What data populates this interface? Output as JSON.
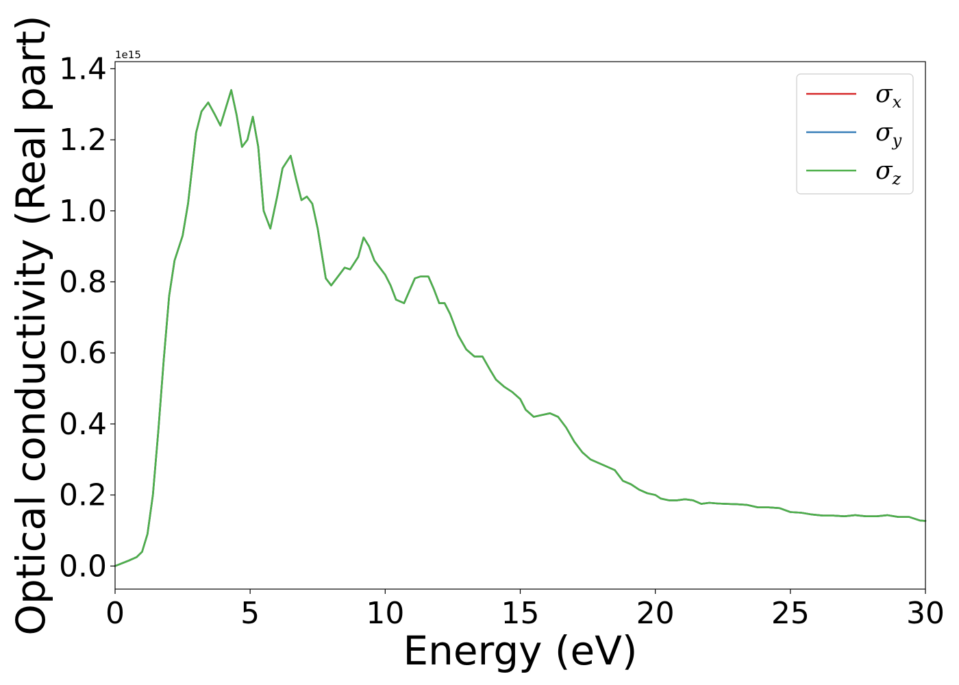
{
  "chart_data": {
    "type": "line",
    "title": "",
    "xlabel": "Energy (eV)",
    "ylabel": "Optical conductivity (Real part)",
    "y_offset_label": "1e15",
    "xlim": [
      0,
      30
    ],
    "ylim": [
      -0.065,
      1.42
    ],
    "xticks": [
      0,
      5,
      10,
      15,
      20,
      25,
      30
    ],
    "xtick_labels": [
      "0",
      "5",
      "10",
      "15",
      "20",
      "25",
      "30"
    ],
    "yticks": [
      0.0,
      0.2,
      0.4,
      0.6,
      0.8,
      1.0,
      1.2,
      1.4
    ],
    "ytick_labels": [
      "0.0",
      "0.2",
      "0.4",
      "0.6",
      "0.8",
      "1.0",
      "1.2",
      "1.4"
    ],
    "grid": false,
    "legend_position": "top-right",
    "series": [
      {
        "name": "σx",
        "legend_symbol": "σ",
        "legend_subscript": "x",
        "color": "#d62728",
        "x": [
          0,
          0.5,
          0.8,
          1.0,
          1.2,
          1.4,
          1.6,
          1.8,
          2.0,
          2.2,
          2.5,
          2.7,
          3.0,
          3.2,
          3.45,
          3.7,
          3.9,
          4.1,
          4.3,
          4.5,
          4.7,
          4.9,
          5.1,
          5.3,
          5.5,
          5.75,
          6.0,
          6.2,
          6.5,
          6.7,
          6.9,
          7.1,
          7.3,
          7.5,
          7.8,
          8.0,
          8.2,
          8.5,
          8.7,
          9.0,
          9.2,
          9.4,
          9.6,
          9.8,
          10.0,
          10.2,
          10.4,
          10.7,
          10.9,
          11.1,
          11.3,
          11.6,
          11.8,
          12.0,
          12.2,
          12.4,
          12.7,
          13.0,
          13.3,
          13.6,
          13.9,
          14.1,
          14.4,
          14.7,
          15.0,
          15.2,
          15.5,
          15.8,
          16.1,
          16.4,
          16.7,
          17.0,
          17.3,
          17.6,
          17.9,
          18.2,
          18.5,
          18.8,
          19.1,
          19.4,
          19.7,
          20.0,
          20.2,
          20.5,
          20.8,
          21.1,
          21.4,
          21.7,
          22.0,
          22.3,
          22.6,
          23.0,
          23.4,
          23.8,
          24.2,
          24.6,
          25.0,
          25.4,
          25.8,
          26.2,
          26.6,
          27.0,
          27.4,
          27.8,
          28.2,
          28.6,
          29.0,
          29.4,
          29.8,
          30.0
        ],
        "y": [
          0.0,
          0.015,
          0.025,
          0.04,
          0.09,
          0.2,
          0.38,
          0.58,
          0.76,
          0.86,
          0.93,
          1.02,
          1.22,
          1.28,
          1.305,
          1.27,
          1.24,
          1.29,
          1.34,
          1.27,
          1.18,
          1.2,
          1.265,
          1.18,
          1.0,
          0.95,
          1.04,
          1.12,
          1.155,
          1.09,
          1.03,
          1.04,
          1.02,
          0.95,
          0.81,
          0.79,
          0.81,
          0.84,
          0.835,
          0.87,
          0.925,
          0.9,
          0.86,
          0.84,
          0.82,
          0.79,
          0.75,
          0.74,
          0.775,
          0.81,
          0.815,
          0.815,
          0.78,
          0.74,
          0.74,
          0.71,
          0.65,
          0.61,
          0.59,
          0.59,
          0.55,
          0.525,
          0.505,
          0.49,
          0.47,
          0.44,
          0.42,
          0.425,
          0.43,
          0.42,
          0.39,
          0.35,
          0.32,
          0.3,
          0.29,
          0.28,
          0.27,
          0.24,
          0.23,
          0.215,
          0.205,
          0.2,
          0.19,
          0.185,
          0.185,
          0.188,
          0.185,
          0.175,
          0.178,
          0.176,
          0.175,
          0.174,
          0.172,
          0.165,
          0.165,
          0.163,
          0.152,
          0.15,
          0.145,
          0.142,
          0.142,
          0.14,
          0.143,
          0.14,
          0.14,
          0.143,
          0.138,
          0.138,
          0.128,
          0.127
        ]
      },
      {
        "name": "σy",
        "legend_symbol": "σ",
        "legend_subscript": "y",
        "color": "#377eb8",
        "x": [
          0,
          0.5,
          0.8,
          1.0,
          1.2,
          1.4,
          1.6,
          1.8,
          2.0,
          2.2,
          2.5,
          2.7,
          3.0,
          3.2,
          3.45,
          3.7,
          3.9,
          4.1,
          4.3,
          4.5,
          4.7,
          4.9,
          5.1,
          5.3,
          5.5,
          5.75,
          6.0,
          6.2,
          6.5,
          6.7,
          6.9,
          7.1,
          7.3,
          7.5,
          7.8,
          8.0,
          8.2,
          8.5,
          8.7,
          9.0,
          9.2,
          9.4,
          9.6,
          9.8,
          10.0,
          10.2,
          10.4,
          10.7,
          10.9,
          11.1,
          11.3,
          11.6,
          11.8,
          12.0,
          12.2,
          12.4,
          12.7,
          13.0,
          13.3,
          13.6,
          13.9,
          14.1,
          14.4,
          14.7,
          15.0,
          15.2,
          15.5,
          15.8,
          16.1,
          16.4,
          16.7,
          17.0,
          17.3,
          17.6,
          17.9,
          18.2,
          18.5,
          18.8,
          19.1,
          19.4,
          19.7,
          20.0,
          20.2,
          20.5,
          20.8,
          21.1,
          21.4,
          21.7,
          22.0,
          22.3,
          22.6,
          23.0,
          23.4,
          23.8,
          24.2,
          24.6,
          25.0,
          25.4,
          25.8,
          26.2,
          26.6,
          27.0,
          27.4,
          27.8,
          28.2,
          28.6,
          29.0,
          29.4,
          29.8,
          30.0
        ],
        "y": [
          0.0,
          0.015,
          0.025,
          0.04,
          0.09,
          0.2,
          0.38,
          0.58,
          0.76,
          0.86,
          0.93,
          1.02,
          1.22,
          1.28,
          1.305,
          1.27,
          1.24,
          1.29,
          1.34,
          1.27,
          1.18,
          1.2,
          1.265,
          1.18,
          1.0,
          0.95,
          1.04,
          1.12,
          1.155,
          1.09,
          1.03,
          1.04,
          1.02,
          0.95,
          0.81,
          0.79,
          0.81,
          0.84,
          0.835,
          0.87,
          0.925,
          0.9,
          0.86,
          0.84,
          0.82,
          0.79,
          0.75,
          0.74,
          0.775,
          0.81,
          0.815,
          0.815,
          0.78,
          0.74,
          0.74,
          0.71,
          0.65,
          0.61,
          0.59,
          0.59,
          0.55,
          0.525,
          0.505,
          0.49,
          0.47,
          0.44,
          0.42,
          0.425,
          0.43,
          0.42,
          0.39,
          0.35,
          0.32,
          0.3,
          0.29,
          0.28,
          0.27,
          0.24,
          0.23,
          0.215,
          0.205,
          0.2,
          0.19,
          0.185,
          0.185,
          0.188,
          0.185,
          0.175,
          0.178,
          0.176,
          0.175,
          0.174,
          0.172,
          0.165,
          0.165,
          0.163,
          0.152,
          0.15,
          0.145,
          0.142,
          0.142,
          0.14,
          0.143,
          0.14,
          0.14,
          0.143,
          0.138,
          0.138,
          0.128,
          0.127
        ]
      },
      {
        "name": "σz",
        "legend_symbol": "σ",
        "legend_subscript": "z",
        "color": "#4daf4a",
        "x": [
          0,
          0.5,
          0.8,
          1.0,
          1.2,
          1.4,
          1.6,
          1.8,
          2.0,
          2.2,
          2.5,
          2.7,
          3.0,
          3.2,
          3.45,
          3.7,
          3.9,
          4.1,
          4.3,
          4.5,
          4.7,
          4.9,
          5.1,
          5.3,
          5.5,
          5.75,
          6.0,
          6.2,
          6.5,
          6.7,
          6.9,
          7.1,
          7.3,
          7.5,
          7.8,
          8.0,
          8.2,
          8.5,
          8.7,
          9.0,
          9.2,
          9.4,
          9.6,
          9.8,
          10.0,
          10.2,
          10.4,
          10.7,
          10.9,
          11.1,
          11.3,
          11.6,
          11.8,
          12.0,
          12.2,
          12.4,
          12.7,
          13.0,
          13.3,
          13.6,
          13.9,
          14.1,
          14.4,
          14.7,
          15.0,
          15.2,
          15.5,
          15.8,
          16.1,
          16.4,
          16.7,
          17.0,
          17.3,
          17.6,
          17.9,
          18.2,
          18.5,
          18.8,
          19.1,
          19.4,
          19.7,
          20.0,
          20.2,
          20.5,
          20.8,
          21.1,
          21.4,
          21.7,
          22.0,
          22.3,
          22.6,
          23.0,
          23.4,
          23.8,
          24.2,
          24.6,
          25.0,
          25.4,
          25.8,
          26.2,
          26.6,
          27.0,
          27.4,
          27.8,
          28.2,
          28.6,
          29.0,
          29.4,
          29.8,
          30.0
        ],
        "y": [
          0.0,
          0.015,
          0.025,
          0.04,
          0.09,
          0.2,
          0.38,
          0.58,
          0.76,
          0.86,
          0.93,
          1.02,
          1.22,
          1.28,
          1.305,
          1.27,
          1.24,
          1.29,
          1.34,
          1.27,
          1.18,
          1.2,
          1.265,
          1.18,
          1.0,
          0.95,
          1.04,
          1.12,
          1.155,
          1.09,
          1.03,
          1.04,
          1.02,
          0.95,
          0.81,
          0.79,
          0.81,
          0.84,
          0.835,
          0.87,
          0.925,
          0.9,
          0.86,
          0.84,
          0.82,
          0.79,
          0.75,
          0.74,
          0.775,
          0.81,
          0.815,
          0.815,
          0.78,
          0.74,
          0.74,
          0.71,
          0.65,
          0.61,
          0.59,
          0.59,
          0.55,
          0.525,
          0.505,
          0.49,
          0.47,
          0.44,
          0.42,
          0.425,
          0.43,
          0.42,
          0.39,
          0.35,
          0.32,
          0.3,
          0.29,
          0.28,
          0.27,
          0.24,
          0.23,
          0.215,
          0.205,
          0.2,
          0.19,
          0.185,
          0.185,
          0.188,
          0.185,
          0.175,
          0.178,
          0.176,
          0.175,
          0.174,
          0.172,
          0.165,
          0.165,
          0.163,
          0.152,
          0.15,
          0.145,
          0.142,
          0.142,
          0.14,
          0.143,
          0.14,
          0.14,
          0.143,
          0.138,
          0.138,
          0.128,
          0.127
        ]
      }
    ]
  }
}
